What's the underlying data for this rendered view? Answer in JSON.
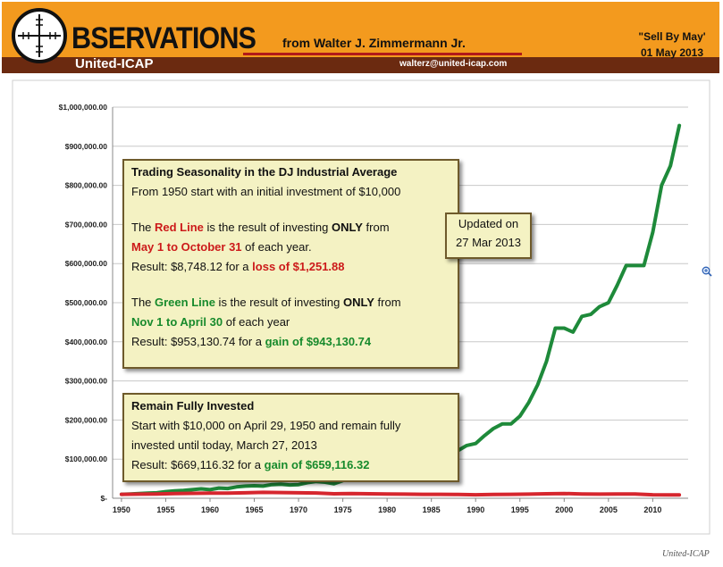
{
  "header": {
    "brand_word": "BSERVATIONS",
    "brand_sub": "United-ICAP",
    "author": "from Walter J. Zimmermann Jr.",
    "email": "walterz@united-icap.com",
    "sell_by_line1": "\"Sell By May'",
    "sell_by_line2": "01 May 2013",
    "colors": {
      "banner": "#f39a1e",
      "strip": "#6b2a10",
      "rule": "#b11919"
    }
  },
  "callout_main": {
    "title": "Trading Seasonality in the DJ Industrial Average",
    "intro": "From 1950 start with an initial investment of $10,000",
    "red_p1_a": "The ",
    "red_p1_b": "Red Line",
    "red_p1_c": " is the result of investing ",
    "red_p1_d": "ONLY",
    "red_p1_e": " from",
    "red_period": "May 1 to October 31",
    "red_period_tail": " of each year.",
    "red_result_a": "Result: $8,748.12 for a ",
    "red_result_b": "loss of $1,251.88",
    "green_p1_a": "The ",
    "green_p1_b": "Green Line",
    "green_p1_c": " is the result of investing ",
    "green_p1_d": "ONLY",
    "green_p1_e": " from",
    "green_period": "Nov 1 to April 30",
    "green_period_tail": " of each year",
    "green_result_a": "Result: $953,130.74 for a ",
    "green_result_b": "gain of $943,130.74"
  },
  "callout_invested": {
    "title": "Remain Fully Invested",
    "line1": "Start with $10,000 on April 29, 1950 and remain fully",
    "line2": "invested until today, March 27, 2013",
    "result_a": "Result: $669,116.32 for a ",
    "result_b": "gain of $659,116.32"
  },
  "callout_updated": {
    "line1": "Updated on",
    "line2": "27 Mar 2013"
  },
  "credit": "United-ICAP",
  "chart_data": {
    "type": "line",
    "title": "",
    "xlabel": "",
    "ylabel": "",
    "xlim": [
      1949,
      2014
    ],
    "ylim": [
      0,
      1000000
    ],
    "x_ticks": [
      1950,
      1955,
      1960,
      1965,
      1970,
      1975,
      1980,
      1985,
      1990,
      1995,
      2000,
      2005,
      2010
    ],
    "y_ticks": [
      0,
      100000,
      200000,
      300000,
      400000,
      500000,
      600000,
      700000,
      800000,
      900000,
      1000000
    ],
    "y_tick_labels": [
      "$-",
      "$100,000.00",
      "$200,000.00",
      "$300,000.00",
      "$400,000.00",
      "$500,000.00",
      "$600,000.00",
      "$700,000.00",
      "$800,000.00",
      "$900,000.00",
      "$1,000,000.00"
    ],
    "grid": true,
    "series": [
      {
        "name": "Green Line",
        "color": "#1e8a3a",
        "x": [
          1950,
          1951,
          1952,
          1953,
          1954,
          1955,
          1956,
          1957,
          1958,
          1959,
          1960,
          1961,
          1962,
          1963,
          1964,
          1965,
          1966,
          1967,
          1968,
          1969,
          1970,
          1971,
          1972,
          1973,
          1974,
          1975,
          1976,
          1977,
          1978,
          1979,
          1980,
          1981,
          1982,
          1983,
          1984,
          1985,
          1986,
          1987,
          1988,
          1989,
          1990,
          1991,
          1992,
          1993,
          1994,
          1995,
          1996,
          1997,
          1998,
          1999,
          2000,
          2001,
          2002,
          2003,
          2004,
          2005,
          2006,
          2007,
          2008,
          2009,
          2010,
          2011,
          2012,
          2013
        ],
        "y": [
          10000,
          11000,
          12000,
          13000,
          14000,
          17000,
          19000,
          20000,
          22000,
          24000,
          22000,
          26000,
          25000,
          29000,
          31000,
          32000,
          31000,
          35000,
          36000,
          34000,
          35000,
          40000,
          43000,
          41000,
          37000,
          45000,
          54000,
          53000,
          55000,
          57000,
          60000,
          59000,
          64000,
          78000,
          76000,
          80000,
          100000,
          120000,
          122000,
          135000,
          140000,
          160000,
          178000,
          190000,
          190000,
          210000,
          245000,
          290000,
          350000,
          435000,
          435000,
          425000,
          465000,
          470000,
          490000,
          500000,
          545000,
          595000,
          595000,
          595000,
          680000,
          800000,
          850000,
          953000
        ]
      },
      {
        "name": "Red Line",
        "color": "#d6262e",
        "x": [
          1950,
          1952,
          1954,
          1956,
          1958,
          1960,
          1962,
          1964,
          1966,
          1968,
          1970,
          1972,
          1974,
          1976,
          1978,
          1980,
          1982,
          1984,
          1986,
          1988,
          1990,
          1992,
          1994,
          1996,
          1998,
          2000,
          2002,
          2004,
          2006,
          2008,
          2010,
          2012,
          2013
        ],
        "y": [
          10000,
          10500,
          11000,
          12000,
          12500,
          13000,
          13000,
          14000,
          15000,
          14500,
          14000,
          13500,
          11500,
          12000,
          11500,
          11000,
          10500,
          10000,
          10000,
          9500,
          9000,
          9500,
          10000,
          10500,
          11500,
          12000,
          11000,
          10500,
          11000,
          11000,
          9000,
          8500,
          8748
        ]
      }
    ]
  }
}
